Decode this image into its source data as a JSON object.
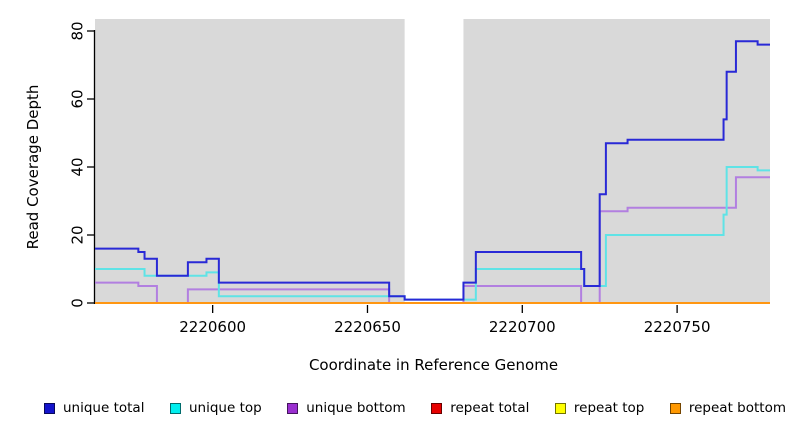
{
  "chart_data": {
    "type": "line",
    "step_mode": "after",
    "title": "",
    "xlabel": "Coordinate in Reference Genome",
    "ylabel": "Read Coverage Depth",
    "xlim": [
      2220562,
      2220780
    ],
    "ylim": [
      0,
      80
    ],
    "x_ticks": [
      "2220600",
      "2220650",
      "2220700",
      "2220750"
    ],
    "x_tick_values": [
      2220600,
      2220650,
      2220700,
      2220750
    ],
    "y_ticks": [
      "0",
      "20",
      "40",
      "60",
      "80"
    ],
    "y_tick_values": [
      0,
      20,
      40,
      60,
      80
    ],
    "grid": false,
    "legend_position": "bottom",
    "plot_background": {
      "shaded_color": "#d9d9d9",
      "shaded_regions": [
        [
          2220562,
          2220662
        ],
        [
          2220681,
          2220780
        ]
      ],
      "unshaded_gap": [
        2220662,
        2220681
      ]
    },
    "series": [
      {
        "name": "unique total",
        "color": "#2929d6",
        "points": [
          [
            2220562,
            16
          ],
          [
            2220576,
            15
          ],
          [
            2220578,
            13
          ],
          [
            2220582,
            8
          ],
          [
            2220592,
            12
          ],
          [
            2220598,
            13
          ],
          [
            2220602,
            6
          ],
          [
            2220657,
            2
          ],
          [
            2220662,
            1
          ],
          [
            2220681,
            6
          ],
          [
            2220685,
            15
          ],
          [
            2220719,
            10
          ],
          [
            2220720,
            5
          ],
          [
            2220725,
            32
          ],
          [
            2220727,
            47
          ],
          [
            2220734,
            48
          ],
          [
            2220765,
            54
          ],
          [
            2220766,
            68
          ],
          [
            2220769,
            77
          ],
          [
            2220776,
            76
          ],
          [
            2220780,
            76
          ]
        ]
      },
      {
        "name": "unique top",
        "color": "#5fe3e6",
        "points": [
          [
            2220562,
            10
          ],
          [
            2220578,
            8
          ],
          [
            2220598,
            9
          ],
          [
            2220602,
            2
          ],
          [
            2220662,
            1
          ],
          [
            2220685,
            10
          ],
          [
            2220720,
            5
          ],
          [
            2220727,
            20
          ],
          [
            2220765,
            26
          ],
          [
            2220766,
            40
          ],
          [
            2220776,
            39
          ],
          [
            2220780,
            39
          ]
        ]
      },
      {
        "name": "unique bottom",
        "color": "#b27fe0",
        "points": [
          [
            2220562,
            6
          ],
          [
            2220576,
            5
          ],
          [
            2220582,
            0
          ],
          [
            2220592,
            4
          ],
          [
            2220657,
            0
          ],
          [
            2220681,
            5
          ],
          [
            2220719,
            0
          ],
          [
            2220725,
            27
          ],
          [
            2220734,
            28
          ],
          [
            2220769,
            37
          ],
          [
            2220780,
            37
          ]
        ]
      },
      {
        "name": "repeat total",
        "color": "#dd0000",
        "points": [
          [
            2220562,
            0
          ],
          [
            2220780,
            0
          ]
        ]
      },
      {
        "name": "repeat top",
        "color": "#f5f500",
        "points": [
          [
            2220562,
            0
          ],
          [
            2220780,
            0
          ]
        ]
      },
      {
        "name": "repeat bottom",
        "color": "#ff9612",
        "points": [
          [
            2220562,
            0
          ],
          [
            2220780,
            0
          ]
        ]
      }
    ]
  },
  "legend": {
    "items": [
      {
        "label": "unique total",
        "fill": "#1414cc"
      },
      {
        "label": "unique top",
        "fill": "#00eeee"
      },
      {
        "label": "unique bottom",
        "fill": "#9a2fd0"
      },
      {
        "label": "repeat total",
        "fill": "#e60000"
      },
      {
        "label": "repeat top",
        "fill": "#ffff00"
      },
      {
        "label": "repeat bottom",
        "fill": "#ff9800"
      }
    ]
  },
  "axis_color": "#000000"
}
